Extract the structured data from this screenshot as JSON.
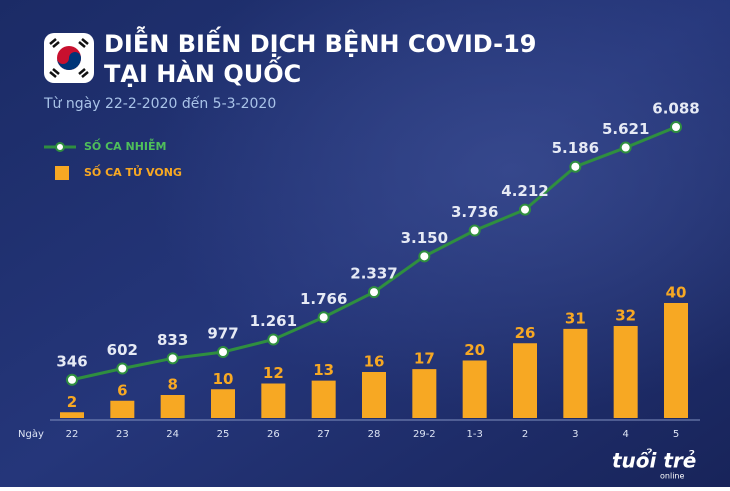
{
  "chart_data": {
    "type": "bar",
    "title": "DIỄN BIẾN DỊCH BỆNH COVID-19",
    "title_line2": "TẠI HÀN QUỐC",
    "subtitle": "Từ ngày 22-2-2020 đến 5-3-2020",
    "x_label": "Ngày",
    "categories": [
      "22",
      "23",
      "24",
      "25",
      "26",
      "27",
      "28",
      "29-2",
      "1-3",
      "2",
      "3",
      "4",
      "5"
    ],
    "series": [
      {
        "name": "SỐ CA NHIỄM",
        "type": "line",
        "color": "#2f8f3f",
        "values": [
          346,
          602,
          833,
          977,
          1261,
          1766,
          2337,
          3150,
          3736,
          4212,
          5186,
          5621,
          6088
        ],
        "value_labels": [
          "346",
          "602",
          "833",
          "977",
          "1.261",
          "1.766",
          "2.337",
          "3.150",
          "3.736",
          "4.212",
          "5.186",
          "5.621",
          "6.088"
        ]
      },
      {
        "name": "SỐ CA TỬ VONG",
        "type": "bar",
        "axis": "y2",
        "color": "#f7a823",
        "values": [
          2,
          6,
          8,
          10,
          12,
          13,
          16,
          17,
          20,
          26,
          31,
          32,
          40
        ]
      }
    ],
    "brand": "tuổi trẻ",
    "brand_sub": "online"
  }
}
